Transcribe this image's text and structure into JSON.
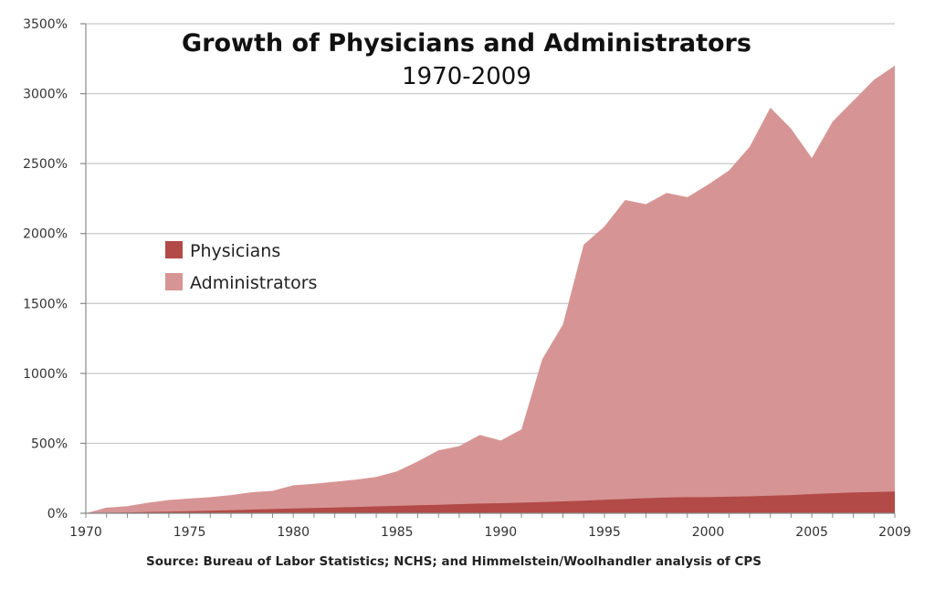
{
  "chart_data": {
    "type": "area",
    "title": "Growth of Physicians and Administrators",
    "subtitle": "1970-2009",
    "source": "Source: Bureau of Labor Statistics; NCHS; and Himmelstein/Woolhandler analysis of CPS",
    "xlabel": "",
    "ylabel": "",
    "ylim": [
      0,
      3500
    ],
    "y_ticks": [
      0,
      500,
      1000,
      1500,
      2000,
      2500,
      3000,
      3500
    ],
    "y_tick_labels": [
      "0%",
      "500%",
      "1000%",
      "1500%",
      "2000%",
      "2500%",
      "3000%",
      "3500%"
    ],
    "xlim": [
      1970,
      2009
    ],
    "x_ticks": [
      1970,
      1975,
      1980,
      1985,
      1990,
      1995,
      2000,
      2005,
      2009
    ],
    "x_tick_labels": [
      "1970",
      "1975",
      "1980",
      "1985",
      "1990",
      "1995",
      "2000",
      "2005",
      "2009"
    ],
    "grid": true,
    "legend_position": "left",
    "x": [
      1970,
      1971,
      1972,
      1973,
      1974,
      1975,
      1976,
      1977,
      1978,
      1979,
      1980,
      1981,
      1982,
      1983,
      1984,
      1985,
      1986,
      1987,
      1988,
      1989,
      1990,
      1991,
      1992,
      1993,
      1994,
      1995,
      1996,
      1997,
      1998,
      1999,
      2000,
      2001,
      2002,
      2003,
      2004,
      2005,
      2006,
      2007,
      2008,
      2009
    ],
    "series": [
      {
        "name": "Physicians",
        "color": "#b24a48",
        "values": [
          0,
          3,
          6,
          9,
          12,
          15,
          18,
          22,
          26,
          30,
          34,
          38,
          41,
          45,
          49,
          53,
          57,
          61,
          65,
          69,
          72,
          76,
          80,
          85,
          90,
          96,
          102,
          108,
          112,
          115,
          115,
          118,
          121,
          126,
          130,
          137,
          143,
          148,
          152,
          155
        ]
      },
      {
        "name": "Administrators",
        "color": "#d69594",
        "values": [
          0,
          40,
          50,
          75,
          95,
          105,
          115,
          130,
          150,
          160,
          200,
          210,
          225,
          240,
          260,
          300,
          370,
          450,
          480,
          560,
          520,
          600,
          1100,
          1350,
          1920,
          2050,
          2240,
          2210,
          2290,
          2260,
          2350,
          2450,
          2620,
          2900,
          2750,
          2540,
          2800,
          2950,
          3100,
          3200
        ]
      }
    ]
  }
}
